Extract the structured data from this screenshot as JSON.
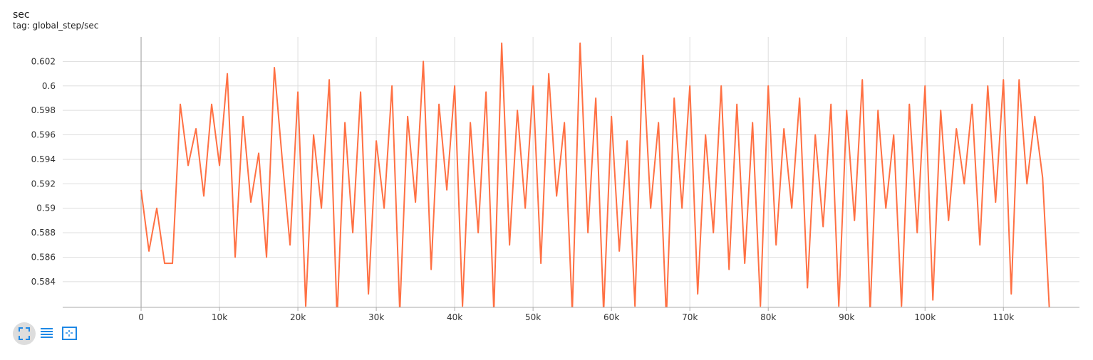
{
  "chart_data": {
    "type": "line",
    "title": "sec",
    "subtitle": "tag: global_step/sec",
    "color": "#ff7043",
    "grid": true,
    "xlim": [
      -10000,
      119700
    ],
    "ylim": [
      0.5819,
      0.604
    ],
    "xticks": [
      0,
      {
        "value": 10000,
        "label": "10k"
      },
      {
        "value": 20000,
        "label": "20k"
      },
      {
        "value": 30000,
        "label": "30k"
      },
      {
        "value": 40000,
        "label": "40k"
      },
      {
        "value": 50000,
        "label": "50k"
      },
      {
        "value": 60000,
        "label": "60k"
      },
      {
        "value": 70000,
        "label": "70k"
      },
      {
        "value": 80000,
        "label": "80k"
      },
      {
        "value": 90000,
        "label": "90k"
      },
      {
        "value": 100000,
        "label": "100k"
      },
      {
        "value": 110000,
        "label": "110k"
      }
    ],
    "yticks": [
      0.584,
      0.586,
      0.588,
      0.59,
      0.592,
      0.594,
      0.596,
      0.598,
      0.6,
      0.602
    ],
    "x": [
      0,
      1000,
      2000,
      3000,
      4000,
      5000,
      6000,
      7000,
      8000,
      9000,
      10000,
      11000,
      12000,
      13000,
      14000,
      15000,
      16000,
      17000,
      18000,
      19000,
      20000,
      21000,
      22000,
      23000,
      24000,
      25000,
      26000,
      27000,
      28000,
      29000,
      30000,
      31000,
      32000,
      33000,
      34000,
      35000,
      36000,
      37000,
      38000,
      39000,
      40000,
      41000,
      42000,
      43000,
      44000,
      45000,
      46000,
      47000,
      48000,
      49000,
      50000,
      51000,
      52000,
      53000,
      54000,
      55000,
      56000,
      57000,
      58000,
      59000,
      60000,
      61000,
      62000,
      63000,
      64000,
      65000,
      66000,
      67000,
      68000,
      69000,
      70000,
      71000,
      72000,
      73000,
      74000,
      75000,
      76000,
      77000,
      78000,
      79000,
      80000,
      81000,
      82000,
      83000,
      84000,
      85000,
      86000,
      87000,
      88000,
      89000,
      90000,
      91000,
      92000,
      93000,
      94000,
      95000,
      96000,
      97000,
      98000,
      99000,
      100000,
      101000,
      102000,
      103000,
      104000,
      105000,
      106000,
      107000,
      108000,
      109000,
      110000,
      111000,
      112000,
      113000,
      114000,
      115000,
      116000
    ],
    "values": [
      0.5915,
      0.5865,
      0.59,
      0.5855,
      0.5855,
      0.5985,
      0.5935,
      0.5965,
      0.591,
      0.5985,
      0.5935,
      0.601,
      0.586,
      0.5975,
      0.5905,
      0.5945,
      0.586,
      0.6015,
      0.594,
      0.587,
      0.5995,
      0.582,
      0.596,
      0.59,
      0.6005,
      0.581,
      0.597,
      0.588,
      0.5995,
      0.583,
      0.5955,
      0.59,
      0.6,
      0.5815,
      0.5975,
      0.5905,
      0.602,
      0.585,
      0.5985,
      0.5915,
      0.6,
      0.582,
      0.597,
      0.588,
      0.5995,
      0.5815,
      0.6035,
      0.587,
      0.598,
      0.59,
      0.6,
      0.5855,
      0.601,
      0.591,
      0.597,
      0.5815,
      0.6035,
      0.588,
      0.599,
      0.5815,
      0.5975,
      0.5865,
      0.5955,
      0.582,
      0.6025,
      0.59,
      0.597,
      0.581,
      0.599,
      0.59,
      0.6,
      0.583,
      0.596,
      0.588,
      0.6,
      0.585,
      0.5985,
      0.5855,
      0.597,
      0.582,
      0.6,
      0.587,
      0.5965,
      0.59,
      0.599,
      0.5835,
      0.596,
      0.5885,
      0.5985,
      0.582,
      0.598,
      0.589,
      0.6005,
      0.5815,
      0.598,
      0.59,
      0.596,
      0.582,
      0.5985,
      0.588,
      0.6,
      0.5825,
      0.598,
      0.589,
      0.5965,
      0.592,
      0.5985,
      0.587,
      0.6,
      0.5905,
      0.6005,
      0.583,
      0.6005,
      0.592,
      0.5975,
      0.5925,
      0.58
    ]
  }
}
